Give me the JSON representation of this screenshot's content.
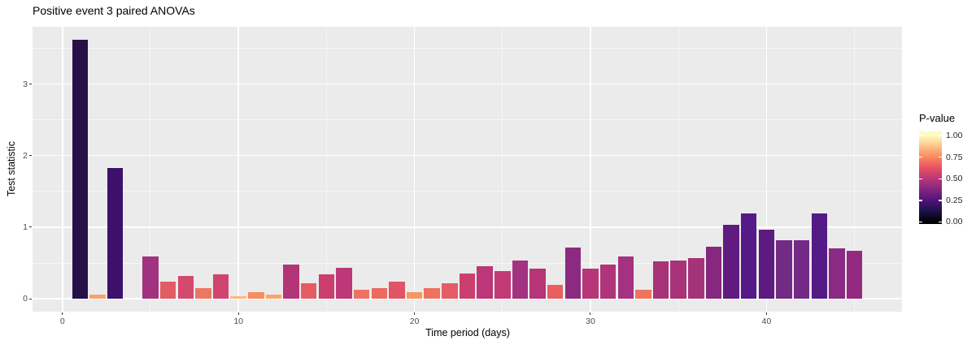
{
  "chart_data": {
    "type": "bar",
    "title": "Positive event 3 paired ANOVAs",
    "xlabel": "Time period (days)",
    "ylabel": "Test statistic",
    "xlim": [
      -1.7,
      47.7
    ],
    "ylim": [
      -0.18,
      3.8
    ],
    "x_ticks": [
      0,
      10,
      20,
      30,
      40
    ],
    "x_minor_ticks": [
      5,
      15,
      25,
      35,
      45
    ],
    "y_ticks": [
      0,
      1,
      2,
      3
    ],
    "y_minor_ticks": [
      0.5,
      1.5,
      2.5,
      3.5
    ],
    "grid": true,
    "panel_bg": "#ebebeb",
    "grid_color": "#ffffff",
    "bar_width_units": 0.9,
    "legend": {
      "title": "P-value",
      "position": "right",
      "tick_labels": [
        "1.00",
        "0.75",
        "0.50",
        "0.25",
        "0.00"
      ],
      "tick_values": [
        1.0,
        0.75,
        0.5,
        0.25,
        0.0
      ],
      "colormap": "magma",
      "gradient_stops": [
        {
          "value": 0.0,
          "color": "#000004"
        },
        {
          "value": 0.125,
          "color": "#1d1147"
        },
        {
          "value": 0.25,
          "color": "#51127c"
        },
        {
          "value": 0.375,
          "color": "#822681"
        },
        {
          "value": 0.5,
          "color": "#b63679"
        },
        {
          "value": 0.625,
          "color": "#e65164"
        },
        {
          "value": 0.75,
          "color": "#fb8861"
        },
        {
          "value": 0.875,
          "color": "#fec287"
        },
        {
          "value": 1.0,
          "color": "#fcfdbf"
        }
      ]
    },
    "bars": [
      {
        "x": 1,
        "test_statistic": 3.62,
        "p_value": 0.13,
        "color": "#261248"
      },
      {
        "x": 2,
        "test_statistic": 0.06,
        "p_value": 0.8,
        "color": "#fba273"
      },
      {
        "x": 3,
        "test_statistic": 1.83,
        "p_value": 0.2,
        "color": "#3c106b"
      },
      {
        "x": 5,
        "test_statistic": 0.59,
        "p_value": 0.46,
        "color": "#a23280"
      },
      {
        "x": 6,
        "test_statistic": 0.24,
        "p_value": 0.62,
        "color": "#e25c66"
      },
      {
        "x": 7,
        "test_statistic": 0.32,
        "p_value": 0.57,
        "color": "#d44a6d"
      },
      {
        "x": 8,
        "test_statistic": 0.15,
        "p_value": 0.69,
        "color": "#ee7763"
      },
      {
        "x": 9,
        "test_statistic": 0.34,
        "p_value": 0.56,
        "color": "#d0446f"
      },
      {
        "x": 10,
        "test_statistic": 0.04,
        "p_value": 0.86,
        "color": "#fcb77d"
      },
      {
        "x": 11,
        "test_statistic": 0.09,
        "p_value": 0.77,
        "color": "#f78c60"
      },
      {
        "x": 12,
        "test_statistic": 0.055,
        "p_value": 0.81,
        "color": "#fca567"
      },
      {
        "x": 13,
        "test_statistic": 0.48,
        "p_value": 0.49,
        "color": "#b23577"
      },
      {
        "x": 14,
        "test_statistic": 0.215,
        "p_value": 0.63,
        "color": "#e55c63"
      },
      {
        "x": 15,
        "test_statistic": 0.34,
        "p_value": 0.54,
        "color": "#ca3f70"
      },
      {
        "x": 16,
        "test_statistic": 0.43,
        "p_value": 0.51,
        "color": "#bc3876"
      },
      {
        "x": 17,
        "test_statistic": 0.13,
        "p_value": 0.68,
        "color": "#ee7261"
      },
      {
        "x": 18,
        "test_statistic": 0.15,
        "p_value": 0.66,
        "color": "#ec6a61"
      },
      {
        "x": 19,
        "test_statistic": 0.24,
        "p_value": 0.6,
        "color": "#e15464"
      },
      {
        "x": 20,
        "test_statistic": 0.09,
        "p_value": 0.78,
        "color": "#f69662"
      },
      {
        "x": 21,
        "test_statistic": 0.15,
        "p_value": 0.68,
        "color": "#ef7260"
      },
      {
        "x": 22,
        "test_statistic": 0.22,
        "p_value": 0.63,
        "color": "#e45d66"
      },
      {
        "x": 23,
        "test_statistic": 0.35,
        "p_value": 0.54,
        "color": "#ca3f70"
      },
      {
        "x": 24,
        "test_statistic": 0.45,
        "p_value": 0.5,
        "color": "#bb3777"
      },
      {
        "x": 25,
        "test_statistic": 0.385,
        "p_value": 0.52,
        "color": "#c23a74"
      },
      {
        "x": 26,
        "test_statistic": 0.53,
        "p_value": 0.46,
        "color": "#a33280"
      },
      {
        "x": 27,
        "test_statistic": 0.42,
        "p_value": 0.49,
        "color": "#b53578"
      },
      {
        "x": 28,
        "test_statistic": 0.19,
        "p_value": 0.63,
        "color": "#e7605f"
      },
      {
        "x": 29,
        "test_statistic": 0.72,
        "p_value": 0.44,
        "color": "#8c2a81"
      },
      {
        "x": 30,
        "test_statistic": 0.42,
        "p_value": 0.49,
        "color": "#b63678"
      },
      {
        "x": 31,
        "test_statistic": 0.48,
        "p_value": 0.485,
        "color": "#b0347b"
      },
      {
        "x": 32,
        "test_statistic": 0.59,
        "p_value": 0.46,
        "color": "#a53181"
      },
      {
        "x": 33,
        "test_statistic": 0.13,
        "p_value": 0.68,
        "color": "#f0735f"
      },
      {
        "x": 34,
        "test_statistic": 0.52,
        "p_value": 0.47,
        "color": "#a83378"
      },
      {
        "x": 35,
        "test_statistic": 0.535,
        "p_value": 0.47,
        "color": "#a83378"
      },
      {
        "x": 36,
        "test_statistic": 0.57,
        "p_value": 0.465,
        "color": "#a43379"
      },
      {
        "x": 37,
        "test_statistic": 0.73,
        "p_value": 0.42,
        "color": "#862780"
      },
      {
        "x": 38,
        "test_statistic": 1.03,
        "p_value": 0.3,
        "color": "#611b80"
      },
      {
        "x": 39,
        "test_statistic": 1.19,
        "p_value": 0.27,
        "color": "#541a86"
      },
      {
        "x": 40,
        "test_statistic": 0.97,
        "p_value": 0.29,
        "color": "#5d1a80"
      },
      {
        "x": 41,
        "test_statistic": 0.82,
        "p_value": 0.36,
        "color": "#722a84"
      },
      {
        "x": 42,
        "test_statistic": 0.82,
        "p_value": 0.36,
        "color": "#742a85"
      },
      {
        "x": 43,
        "test_statistic": 1.19,
        "p_value": 0.27,
        "color": "#541a86"
      },
      {
        "x": 44,
        "test_statistic": 0.71,
        "p_value": 0.43,
        "color": "#8a2a84"
      },
      {
        "x": 45,
        "test_statistic": 0.67,
        "p_value": 0.45,
        "color": "#922b80"
      }
    ]
  }
}
